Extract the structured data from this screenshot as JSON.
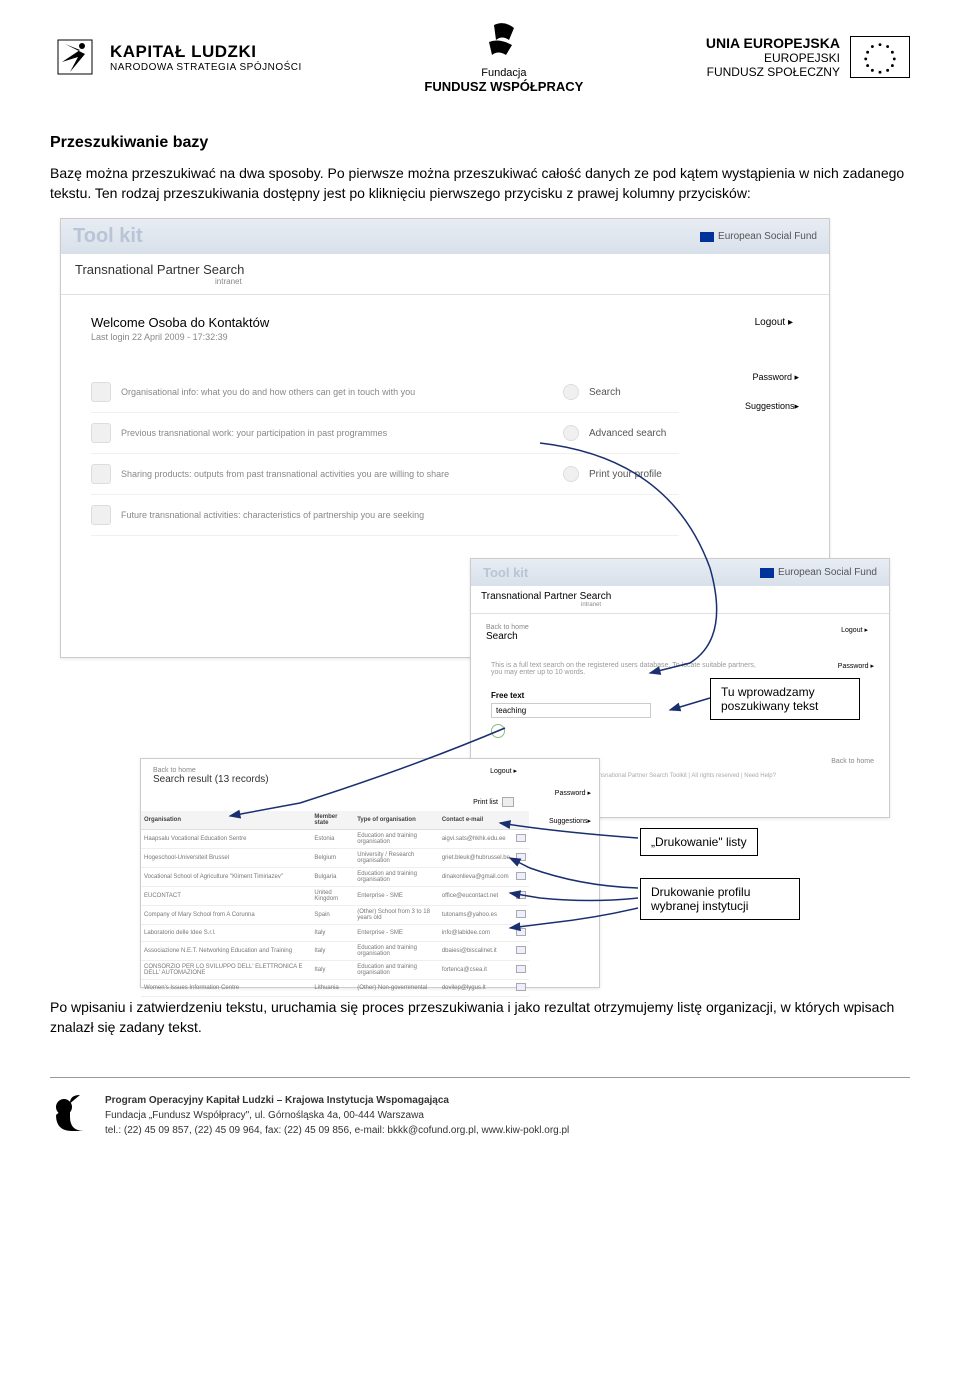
{
  "header": {
    "left": {
      "title": "KAPITAŁ LUDZKI",
      "subtitle": "NARODOWA STRATEGIA SPÓJNOŚCI"
    },
    "center": {
      "line1": "Fundacja",
      "line2": "FUNDUSZ WSPÓŁPRACY"
    },
    "right": {
      "l1": "UNIA EUROPEJSKA",
      "l2": "EUROPEJSKI",
      "l3": "FUNDUSZ SPOŁECZNY"
    }
  },
  "body": {
    "heading": "Przeszukiwanie bazy",
    "p1": "Bazę można przeszukiwać na dwa sposoby. Po pierwsze można przeszukiwać całość danych ze pod kątem wystąpienia w nich zadanego tekstu. Ten rodzaj przeszukiwania dostępny jest po kliknięciu pierwszego przycisku z prawej kolumny przycisków:",
    "p2": "Po wpisaniu i zatwierdzeniu tekstu, uruchamia się proces przeszukiwania i jako rezultat otrzymujemy listę organizacji, w których wpisach znalazł się zadany tekst."
  },
  "ss1": {
    "brand": "Tool kit",
    "esf": "European Social Fund",
    "title": "Transnational Partner Search",
    "title_sub": "intranet",
    "welcome": "Welcome Osoba do Kontaktów",
    "welcome_sub": "Last login 22 April 2009 - 17:32:39",
    "logout": "Logout  ▸",
    "password": "Password  ▸",
    "suggestions": "Suggestions▸",
    "rows": [
      {
        "text": "Organisational info: what you do and how others can get in touch with you",
        "label": "Search"
      },
      {
        "text": "Previous transnational work: your participation in past programmes",
        "label": "Advanced search"
      },
      {
        "text": "Sharing products: outputs from past transnational activities you are willing to share",
        "label": "Print your profile"
      },
      {
        "text": "Future transnational activities: characteristics of partnership you are seeking",
        "label": ""
      }
    ]
  },
  "ss2": {
    "brand": "Tool kit",
    "esf": "European Social Fund",
    "title": "Transnational Partner Search",
    "title_sub": "intranet",
    "back": "Back to home",
    "search": "Search",
    "logout": "Logout  ▸",
    "password": "Password  ▸",
    "hint": "This is a full text search on the registered users database. To locate suitable partners, you may enter up to 10 words.",
    "free_text": "Free text",
    "input_value": "teaching",
    "back_home": "Back to home",
    "copyright": "© Transnational Partner Search Toolkit | All rights reserved | Need Help?"
  },
  "ss3": {
    "back": "Back to home",
    "title": "Search result (13 records)",
    "logout": "Logout  ▸",
    "password": "Password  ▸",
    "suggestions": "Suggestions▸",
    "print": "Print list",
    "columns": [
      "Organisation",
      "Member state",
      "Type of organisation",
      "Contact e-mail",
      ""
    ],
    "rows": [
      [
        "Haapsalu Vocational Education Sentre",
        "Estonia",
        "Education and training organisation",
        "aigvi.sats@hkhk.edu.ee"
      ],
      [
        "Hogeschool-Universiteit Brussel",
        "Belgium",
        "University / Research organisation",
        "griet.bleuk@hubrussel.be"
      ],
      [
        "Vocational School of Agriculture \"Kliment Timiriazev\"",
        "Bulgaria",
        "Education and training organisation",
        "dinakonlieva@gmail.com"
      ],
      [
        "EUCONTACT",
        "United Kingdom",
        "Enterprise - SME",
        "office@eucontact.net"
      ],
      [
        "Company of Mary School from A Corunna",
        "Spain",
        "(Other) School from 3 to 18 years old",
        "tutonams@yahoo.es"
      ],
      [
        "Laboratorio delle Idee S.r.l.",
        "Italy",
        "Enterprise - SME",
        "info@labidee.com"
      ],
      [
        "Associazione N.E.T. Networking Education and Training",
        "Italy",
        "Education and training organisation",
        "dbaiesi@biscalinet.it"
      ],
      [
        "CONSORZIO PER LO SVILUPPO DELL' ELETTRONICA E DELL' AUTOMAZIONE",
        "Italy",
        "Education and training organisation",
        "fortenca@csea.it"
      ],
      [
        "Women's Issues Information Centre",
        "Lithuania",
        "(Other) Non-governmental",
        "dovilep@lygus.lt"
      ]
    ]
  },
  "callouts": {
    "c1": "Tu wprowadzamy poszukiwany tekst",
    "c2": "„Drukowanie\" listy",
    "c3": "Drukowanie profilu wybranej instytucji"
  },
  "footer": {
    "l1": "Program Operacyjny Kapitał Ludzki – Krajowa Instytucja Wspomagająca",
    "l2": "Fundacja „Fundusz Współpracy\", ul. Górnośląska 4a, 00-444 Warszawa",
    "l3": "tel.: (22) 45 09 857, (22) 45 09 964, fax: (22) 45 09 856, e-mail: bkkk@cofund.org.pl, www.kiw-pokl.org.pl"
  },
  "colors": {
    "header_bg": "#e8edf3",
    "header_bg2": "#d8e0ea",
    "brand_faded": "#b8c5d6",
    "arrow": "#1a2f6f",
    "eu_blue": "#003399"
  }
}
